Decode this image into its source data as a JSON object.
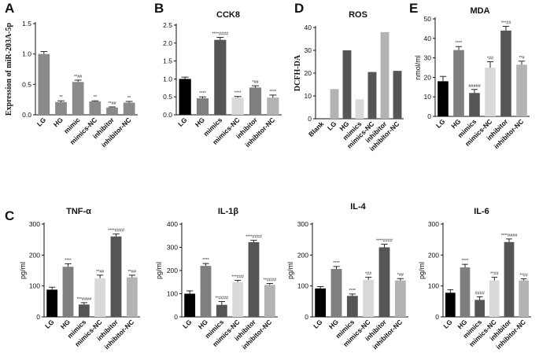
{
  "colors": {
    "black": "#000000",
    "dark": "#555555",
    "mid": "#7f7f7f",
    "light": "#b3b3b3",
    "vlight": "#d9d9d9",
    "bar_a": "#8a8a8a"
  },
  "panel_letters": {
    "A": "A",
    "B": "B",
    "C": "C",
    "D": "D",
    "E": "E"
  },
  "chart_data": [
    {
      "id": "mirna",
      "type": "bar",
      "title": "",
      "ylabel": "Expression of miR-203A-5p",
      "ylim": [
        0,
        1.5
      ],
      "yticks": [
        "0.0",
        "0.5",
        "1.0",
        "1.5"
      ],
      "ytick_values": [
        0,
        0.5,
        1.0,
        1.5
      ],
      "categories": [
        "LG",
        "HG",
        "mimic",
        "mimics-NC",
        "inhibitor",
        "inhibitor-NC"
      ],
      "values": [
        1.0,
        0.21,
        0.54,
        0.22,
        0.12,
        0.2
      ],
      "errors": [
        0.04,
        0.02,
        0.03,
        0.01,
        0.01,
        0.02
      ],
      "annotations": [
        "",
        "**",
        "**##",
        "**",
        "**##",
        "**"
      ],
      "colors": [
        "bar_a",
        "bar_a",
        "bar_a",
        "bar_a",
        "bar_a",
        "bar_a"
      ]
    },
    {
      "id": "cck8",
      "type": "bar",
      "title": "CCK8",
      "ylabel": "",
      "ylim": [
        0,
        2.5
      ],
      "yticks": [
        "0.0",
        "0.5",
        "1.0",
        "1.5",
        "2.0",
        "2.5"
      ],
      "ytick_values": [
        0,
        0.5,
        1.0,
        1.5,
        2.0,
        2.5
      ],
      "categories": [
        "LG",
        "HG",
        "mimics",
        "mimics-NC",
        "inhibitor",
        "inhibitor-NC"
      ],
      "values": [
        1.0,
        0.46,
        2.09,
        0.48,
        0.76,
        0.48
      ],
      "errors": [
        0.05,
        0.04,
        0.07,
        0.03,
        0.05,
        0.07
      ],
      "annotations": [
        "",
        "****",
        "****####",
        "****",
        "*##",
        "****"
      ],
      "colors": [
        "black",
        "mid",
        "dark",
        "vlight",
        "mid",
        "light"
      ]
    },
    {
      "id": "ros",
      "type": "bar",
      "title": "ROS",
      "ylabel": "DCFH-DA",
      "ylim": [
        0,
        40
      ],
      "yticks": [
        "0",
        "10",
        "20",
        "30",
        "40"
      ],
      "ytick_values": [
        0,
        10,
        20,
        30,
        40
      ],
      "categories": [
        "Blank",
        "LG",
        "HG",
        "mimics",
        "mimics-NC",
        "inhibitor",
        "inhibitor-NC"
      ],
      "values": [
        0,
        13,
        30,
        8.5,
        20.5,
        38,
        21
      ],
      "errors": [
        0,
        0,
        0,
        0,
        0,
        0,
        0
      ],
      "annotations": [
        "",
        "",
        "",
        "",
        "",
        "",
        ""
      ],
      "colors": [
        "black",
        "light",
        "dark",
        "vlight",
        "dark",
        "light",
        "dark"
      ]
    },
    {
      "id": "mda",
      "type": "bar",
      "title": "MDA",
      "ylabel": "nmol/ml",
      "ylim": [
        0,
        50
      ],
      "yticks": [
        "0",
        "10",
        "20",
        "30",
        "40",
        "50"
      ],
      "ytick_values": [
        0,
        10,
        20,
        30,
        40,
        50
      ],
      "categories": [
        "LG",
        "HG",
        "mimics",
        "mimics-NC",
        "inhibitor",
        "inhibitor-NC"
      ],
      "values": [
        18,
        34,
        12,
        25,
        44,
        26.5
      ],
      "errors": [
        2.5,
        1.8,
        1.8,
        3.0,
        2.2,
        1.8
      ],
      "annotations": [
        "",
        "****",
        "#####",
        "*##",
        "***##",
        "**#"
      ],
      "colors": [
        "black",
        "mid",
        "dark",
        "vlight",
        "dark",
        "light"
      ]
    },
    {
      "id": "tnf",
      "type": "bar",
      "title": "TNF-α",
      "ylabel": "pg/ml",
      "ylim": [
        0,
        300
      ],
      "yticks": [
        "0",
        "100",
        "200",
        "300"
      ],
      "ytick_values": [
        0,
        100,
        200,
        300
      ],
      "categories": [
        "LG",
        "HG",
        "mimics",
        "mimics-NC",
        "inhibitor",
        "inhibitor-NC"
      ],
      "values": [
        88,
        162,
        40,
        125,
        260,
        128
      ],
      "errors": [
        8,
        10,
        6,
        10,
        8,
        7
      ],
      "annotations": [
        "",
        "****",
        "***####",
        "**##",
        "****####",
        "**##"
      ],
      "colors": [
        "black",
        "mid",
        "dark",
        "vlight",
        "dark",
        "light"
      ]
    },
    {
      "id": "il1b",
      "type": "bar",
      "title": "IL-1β",
      "ylabel": "pg/ml",
      "ylim": [
        0,
        400
      ],
      "yticks": [
        "0",
        "100",
        "200",
        "300",
        "400"
      ],
      "ytick_values": [
        0,
        100,
        200,
        300,
        400
      ],
      "categories": [
        "LG",
        "HG",
        "mimics",
        "mimics-NC",
        "inhibitor",
        "inhibitor-NC"
      ],
      "values": [
        100,
        220,
        52,
        150,
        322,
        138
      ],
      "errors": [
        12,
        10,
        14,
        8,
        8,
        6
      ],
      "annotations": [
        "",
        "****",
        "**####",
        "***###",
        "****####",
        "**####"
      ],
      "colors": [
        "black",
        "mid",
        "dark",
        "vlight",
        "dark",
        "light"
      ]
    },
    {
      "id": "il4",
      "type": "bar",
      "title": "IL-4",
      "ylabel": "pg/ml",
      "ylim": [
        0,
        300
      ],
      "yticks": [
        "0",
        "100",
        "200",
        "300"
      ],
      "ytick_values": [
        0,
        100,
        200,
        300
      ],
      "categories": [
        "LG",
        "HG",
        "mimics",
        "mimics-NC",
        "inhibitor",
        "inhibitor-NC"
      ],
      "values": [
        92,
        155,
        68,
        120,
        225,
        118
      ],
      "errors": [
        6,
        8,
        6,
        8,
        10,
        6
      ],
      "annotations": [
        "",
        "****",
        "****",
        "*##",
        "****####",
        "*##"
      ],
      "colors": [
        "black",
        "mid",
        "dark",
        "vlight",
        "dark",
        "light"
      ]
    },
    {
      "id": "il6",
      "type": "bar",
      "title": "IL-6",
      "ylabel": "pg/ml",
      "ylim": [
        0,
        300
      ],
      "yticks": [
        "0",
        "100",
        "200",
        "300"
      ],
      "ytick_values": [
        0,
        100,
        200,
        300
      ],
      "categories": [
        "LG",
        "HG",
        "mimics",
        "mimics-NC",
        "inhibitor",
        "inhibitor-NC"
      ],
      "values": [
        78,
        160,
        55,
        118,
        242,
        118
      ],
      "errors": [
        10,
        10,
        10,
        10,
        10,
        5
      ],
      "annotations": [
        "",
        "****",
        "####",
        "**##",
        "****####",
        "**##"
      ],
      "colors": [
        "black",
        "mid",
        "dark",
        "vlight",
        "dark",
        "light"
      ]
    }
  ]
}
